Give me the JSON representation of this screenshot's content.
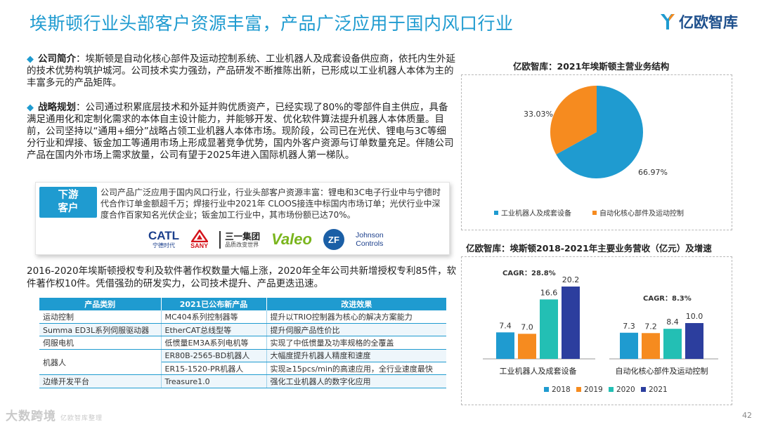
{
  "header": {
    "title": "埃斯顿行业头部客户资源丰富，产品广泛应用于国内风口行业",
    "logo_text": "亿欧智库"
  },
  "intro": {
    "label": "公司简介",
    "text": "：埃斯顿是自动化核心部件及运动控制系统、工业机器人及成套设备供应商，依托内生外延的技术优势构筑护城河。公司技术实力强劲，产品研发不断推陈出新，已形成以工业机器人本体为主的丰富多元的产品矩阵。"
  },
  "strategy": {
    "label": "战略规划",
    "text": "：公司通过积累底层技术和外延并购优质资产，已经实现了80%的零部件自主供应，具备满足通用化和定制化需求的本体自主设计能力，并能够开发、优化软件算法提升机器人本体质量。目前，公司坚持以“通用+细分”战略占领工业机器人本体市场。现阶段，公司已在光伏、锂电与3C等细分行业和焊接、钣金加工等通用市场上形成显著竞争优势，国内外客户资源与订单数量充足。伴随公司产品在国内外市场上需求放量，公司有望于2025年进入国际机器人第一梯队。"
  },
  "customers": {
    "label_line1": "下游",
    "label_line2": "客户",
    "text": "公司产品广泛应用于国内风口行业，行业头部客户资源丰富：锂电和3C电子行业中与宁德时代合作订单金额超千万；焊接行业中2021年 CLOOS接连中标国内市场订单；光伏行业中深度合作百家知名光伏企业；钣金加工行业中，其市场份额已达70%。",
    "logos": {
      "catl": "CATL",
      "catl_sub": "宁德时代",
      "sany": "SANY",
      "sanyi": "三一集团",
      "sanyi_sub": "品质改变世界",
      "valeo": "Valeo",
      "zf": "ZF",
      "jc_line1": "Johnson",
      "jc_line2": "Controls"
    }
  },
  "patents": {
    "text": "2016-2020年埃斯顿授权专利及软件著作权数量大幅上涨，2020年全年公司共新增授权专利85件，软件著作权10件。凭借强劲的研发实力，公司技术提升、产品更迭迅速。"
  },
  "table": {
    "headers": [
      "产品类别",
      "2021已公布新产品",
      "改进效果"
    ],
    "rows": [
      [
        "运动控制",
        "MC404系列控制器等",
        "提升以TRIO控制器为核心的解决方案能力"
      ],
      [
        "Summa ED3L系列伺服驱动器",
        "EtherCAT总线型等",
        "提升伺服产品性价比"
      ],
      [
        "伺服电机",
        "低惯量EM3A系列电机等",
        "实现了中低惯量及功率规格的全覆盖"
      ],
      [
        "机器人",
        "ER80B-2565-BD机器人",
        "大幅度提升机器人精度和速度"
      ],
      [
        "",
        "ER15-1520-PR机器人",
        "实现≥15pcs/min的高速应用，全行业速度最快"
      ],
      [
        "边缘开发平台",
        "Treasure1.0",
        "强化工业机器人的数字化应用"
      ]
    ]
  },
  "pie_chart": {
    "title": "亿欧智库：2021年埃斯顿主营业务结构",
    "chart_data": {
      "type": "pie",
      "labels": [
        "工业机器人及成套设备",
        "自动化核心部件及运动控制"
      ],
      "values": [
        66.97,
        33.03
      ],
      "value_labels": [
        "66.97%",
        "33.03%"
      ],
      "colors": [
        "#1f9bd0",
        "#f68b1f"
      ],
      "legend_position": "bottom"
    }
  },
  "bar_chart": {
    "title": "亿欧智库：埃斯顿2018-2021年主要业务营收（亿元）及增速",
    "chart_data": {
      "type": "bar",
      "categories": [
        "工业机器人及成套设备",
        "自动化核心部件及运动控制"
      ],
      "series": [
        {
          "name": "2018",
          "values": [
            7.4,
            7.3
          ],
          "color": "#1f9bd0"
        },
        {
          "name": "2019",
          "values": [
            7.0,
            7.2
          ],
          "color": "#f68b1f"
        },
        {
          "name": "2020",
          "values": [
            16.6,
            8.4
          ],
          "color": "#23bfb4"
        },
        {
          "name": "2021",
          "values": [
            20.2,
            10.0
          ],
          "color": "#2c3e9e"
        }
      ],
      "value_labels": [
        [
          "7.4",
          "7.0",
          "16.6",
          "20.2"
        ],
        [
          "7.3",
          "7.2",
          "8.4",
          "10.0"
        ]
      ],
      "annotations": [
        "CAGR：28.8%",
        "CAGR：8.3%"
      ],
      "legend_position": "bottom",
      "grid": false
    }
  },
  "footer": {
    "watermark": "大数跨境",
    "watermark_sub": "亿欧智库整理",
    "page_number": "42"
  }
}
